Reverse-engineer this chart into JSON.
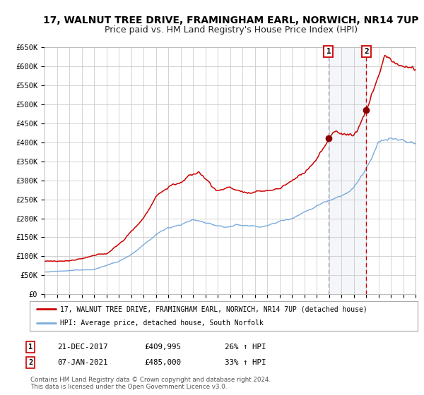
{
  "title": "17, WALNUT TREE DRIVE, FRAMINGHAM EARL, NORWICH, NR14 7UP",
  "subtitle": "Price paid vs. HM Land Registry's House Price Index (HPI)",
  "ylim": [
    0,
    650000
  ],
  "yticks": [
    0,
    50000,
    100000,
    150000,
    200000,
    250000,
    300000,
    350000,
    400000,
    450000,
    500000,
    550000,
    600000,
    650000
  ],
  "ytick_labels": [
    "£0",
    "£50K",
    "£100K",
    "£150K",
    "£200K",
    "£250K",
    "£300K",
    "£350K",
    "£400K",
    "£450K",
    "£500K",
    "£550K",
    "£600K",
    "£650K"
  ],
  "red_color": "#cc0000",
  "blue_color": "#7aaadd",
  "marker_color": "#880000",
  "point1_year": 2017.97,
  "point1_value": 409995,
  "point2_year": 2021.02,
  "point2_value": 485000,
  "point1_date": "21-DEC-2017",
  "point1_price": "£409,995",
  "point1_hpi": "26% ↑ HPI",
  "point2_date": "07-JAN-2021",
  "point2_price": "£485,000",
  "point2_hpi": "33% ↑ HPI",
  "legend_line1": "17, WALNUT TREE DRIVE, FRAMINGHAM EARL, NORWICH, NR14 7UP (detached house)",
  "legend_line2": "HPI: Average price, detached house, South Norfolk",
  "footer1": "Contains HM Land Registry data © Crown copyright and database right 2024.",
  "footer2": "This data is licensed under the Open Government Licence v3.0.",
  "bg_color": "#ffffff",
  "grid_color": "#cccccc",
  "title_fontsize": 10,
  "subtitle_fontsize": 9,
  "tick_fontsize": 7.5
}
